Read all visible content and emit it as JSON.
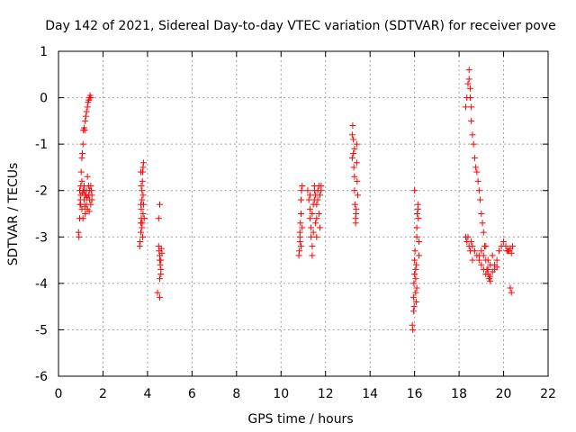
{
  "chart_data": {
    "type": "scatter",
    "title": "Day 142 of 2021, Sidereal Day-to-day VTEC variation (SDTVAR) for receiver pove",
    "xlabel": "GPS time / hours",
    "ylabel": "SDTVAR / TECUs",
    "xlim": [
      0,
      22
    ],
    "ylim": [
      -6,
      1
    ],
    "xticks": [
      0,
      2,
      4,
      6,
      8,
      10,
      12,
      14,
      16,
      18,
      20,
      22
    ],
    "yticks": [
      -6,
      -5,
      -4,
      -3,
      -2,
      -1,
      0,
      1
    ],
    "grid": true,
    "marker": "+",
    "marker_color": "#ff0000",
    "series": [
      {
        "name": "SDTVAR",
        "points": [
          [
            0.9,
            -2.9
          ],
          [
            0.92,
            -3.0
          ],
          [
            0.95,
            -2.6
          ],
          [
            0.97,
            -2.3
          ],
          [
            1.0,
            -1.9
          ],
          [
            1.02,
            -1.6
          ],
          [
            1.05,
            -1.3
          ],
          [
            1.07,
            -1.2
          ],
          [
            1.1,
            -1.0
          ],
          [
            1.12,
            -0.7
          ],
          [
            1.15,
            -0.65
          ],
          [
            1.18,
            -0.7
          ],
          [
            1.2,
            -0.5
          ],
          [
            1.23,
            -0.4
          ],
          [
            1.26,
            -0.3
          ],
          [
            1.3,
            -0.2
          ],
          [
            1.33,
            -0.1
          ],
          [
            1.36,
            -0.05
          ],
          [
            1.4,
            0.0
          ],
          [
            1.42,
            0.05
          ],
          [
            1.45,
            0.0
          ],
          [
            0.95,
            -2.0
          ],
          [
            1.0,
            -2.1
          ],
          [
            1.0,
            -2.3
          ],
          [
            1.05,
            -1.8
          ],
          [
            1.05,
            -2.4
          ],
          [
            1.1,
            -2.0
          ],
          [
            1.1,
            -2.6
          ],
          [
            1.15,
            -2.2
          ],
          [
            1.15,
            -1.9
          ],
          [
            1.2,
            -2.5
          ],
          [
            1.2,
            -2.1
          ],
          [
            1.25,
            -2.0
          ],
          [
            1.25,
            -2.3
          ],
          [
            1.3,
            -1.7
          ],
          [
            1.3,
            -2.4
          ],
          [
            1.35,
            -2.1
          ],
          [
            1.35,
            -1.9
          ],
          [
            1.4,
            -2.2
          ],
          [
            1.4,
            -2.0
          ],
          [
            1.45,
            -2.3
          ],
          [
            1.45,
            -1.9
          ],
          [
            1.5,
            -2.1
          ],
          [
            1.5,
            -2.2
          ],
          [
            1.15,
            -2.0
          ],
          [
            1.25,
            -2.1
          ],
          [
            0.98,
            -2.2
          ],
          [
            1.08,
            -2.05
          ],
          [
            1.18,
            -2.35
          ],
          [
            1.28,
            -2.15
          ],
          [
            1.38,
            -2.45
          ],
          [
            1.48,
            -2.0
          ],
          [
            3.65,
            -3.2
          ],
          [
            3.67,
            -3.1
          ],
          [
            3.7,
            -2.9
          ],
          [
            3.7,
            -2.7
          ],
          [
            3.72,
            -2.6
          ],
          [
            3.72,
            -2.4
          ],
          [
            3.75,
            -2.2
          ],
          [
            3.75,
            -2.0
          ],
          [
            3.77,
            -1.8
          ],
          [
            3.78,
            -1.6
          ],
          [
            3.8,
            -1.5
          ],
          [
            3.82,
            -1.4
          ],
          [
            3.7,
            -1.6
          ],
          [
            3.72,
            -1.9
          ],
          [
            3.75,
            -2.8
          ],
          [
            3.78,
            -3.0
          ],
          [
            3.8,
            -2.5
          ],
          [
            3.82,
            -2.3
          ],
          [
            3.85,
            -2.6
          ],
          [
            3.7,
            -2.3
          ],
          [
            3.76,
            -2.7
          ],
          [
            3.8,
            -2.1
          ],
          [
            4.5,
            -3.2
          ],
          [
            4.52,
            -3.3
          ],
          [
            4.55,
            -3.4
          ],
          [
            4.55,
            -3.5
          ],
          [
            4.57,
            -3.6
          ],
          [
            4.6,
            -3.7
          ],
          [
            4.6,
            -3.8
          ],
          [
            4.62,
            -3.25
          ],
          [
            4.65,
            -3.35
          ],
          [
            4.55,
            -3.9
          ],
          [
            4.45,
            -4.2
          ],
          [
            4.55,
            -4.3
          ],
          [
            4.55,
            -2.3
          ],
          [
            4.5,
            -2.6
          ],
          [
            4.6,
            -3.5
          ],
          [
            10.8,
            -3.4
          ],
          [
            10.82,
            -3.3
          ],
          [
            10.85,
            -3.1
          ],
          [
            10.85,
            -2.9
          ],
          [
            10.87,
            -2.7
          ],
          [
            10.9,
            -2.5
          ],
          [
            10.9,
            -2.2
          ],
          [
            10.92,
            -2.0
          ],
          [
            10.95,
            -1.9
          ],
          [
            10.85,
            -3.0
          ],
          [
            10.9,
            -3.2
          ],
          [
            10.95,
            -2.8
          ],
          [
            11.2,
            -2.0
          ],
          [
            11.25,
            -2.2
          ],
          [
            11.3,
            -2.4
          ],
          [
            11.3,
            -2.6
          ],
          [
            11.35,
            -2.8
          ],
          [
            11.35,
            -3.0
          ],
          [
            11.4,
            -3.2
          ],
          [
            11.4,
            -3.4
          ],
          [
            11.45,
            -2.9
          ],
          [
            11.45,
            -2.3
          ],
          [
            11.5,
            -2.0
          ],
          [
            11.5,
            -1.9
          ],
          [
            11.55,
            -2.1
          ],
          [
            11.55,
            -2.7
          ],
          [
            11.6,
            -3.0
          ],
          [
            11.6,
            -2.6
          ],
          [
            11.65,
            -2.2
          ],
          [
            11.65,
            -2.0
          ],
          [
            11.7,
            -1.9
          ],
          [
            11.7,
            -2.5
          ],
          [
            11.75,
            -2.8
          ],
          [
            11.75,
            -2.1
          ],
          [
            11.8,
            -1.9
          ],
          [
            11.8,
            -2.0
          ],
          [
            11.3,
            -2.1
          ],
          [
            11.4,
            -2.5
          ],
          [
            11.5,
            -2.2
          ],
          [
            11.6,
            -2.3
          ],
          [
            13.2,
            -0.8
          ],
          [
            13.22,
            -0.6
          ],
          [
            13.25,
            -0.9
          ],
          [
            13.25,
            -1.2
          ],
          [
            13.27,
            -1.5
          ],
          [
            13.3,
            -1.7
          ],
          [
            13.3,
            -2.0
          ],
          [
            13.32,
            -2.3
          ],
          [
            13.35,
            -2.6
          ],
          [
            13.35,
            -2.7
          ],
          [
            13.37,
            -2.5
          ],
          [
            13.4,
            -1.4
          ],
          [
            13.4,
            -1.0
          ],
          [
            13.42,
            -1.8
          ],
          [
            13.45,
            -2.1
          ],
          [
            13.2,
            -1.3
          ],
          [
            13.3,
            -1.1
          ],
          [
            13.38,
            -2.4
          ],
          [
            15.9,
            -4.9
          ],
          [
            15.92,
            -5.0
          ],
          [
            15.95,
            -4.6
          ],
          [
            15.95,
            -4.3
          ],
          [
            15.97,
            -4.0
          ],
          [
            16.0,
            -3.8
          ],
          [
            16.0,
            -3.5
          ],
          [
            16.02,
            -3.3
          ],
          [
            16.05,
            -3.7
          ],
          [
            16.05,
            -4.2
          ],
          [
            16.07,
            -4.4
          ],
          [
            16.1,
            -3.0
          ],
          [
            16.1,
            -2.8
          ],
          [
            16.12,
            -2.5
          ],
          [
            16.15,
            -2.4
          ],
          [
            16.15,
            -2.3
          ],
          [
            16.17,
            -2.6
          ],
          [
            16.2,
            -3.1
          ],
          [
            16.2,
            -3.4
          ],
          [
            16.0,
            -2.0
          ],
          [
            16.05,
            -3.9
          ],
          [
            16.1,
            -4.1
          ],
          [
            15.98,
            -4.5
          ],
          [
            16.08,
            -3.6
          ],
          [
            18.3,
            -0.2
          ],
          [
            18.35,
            0.0
          ],
          [
            18.4,
            0.3
          ],
          [
            18.45,
            0.6
          ],
          [
            18.45,
            0.4
          ],
          [
            18.5,
            0.2
          ],
          [
            18.5,
            0.0
          ],
          [
            18.55,
            -0.2
          ],
          [
            18.55,
            -0.5
          ],
          [
            18.6,
            -0.8
          ],
          [
            18.65,
            -1.0
          ],
          [
            18.7,
            -1.3
          ],
          [
            18.75,
            -1.5
          ],
          [
            18.8,
            -1.6
          ],
          [
            18.85,
            -1.8
          ],
          [
            18.9,
            -2.0
          ],
          [
            18.95,
            -2.2
          ],
          [
            19.0,
            -2.5
          ],
          [
            19.05,
            -2.7
          ],
          [
            19.1,
            -2.9
          ],
          [
            19.15,
            -3.2
          ],
          [
            19.2,
            -3.5
          ],
          [
            19.25,
            -3.7
          ],
          [
            19.3,
            -3.8
          ],
          [
            19.35,
            -3.9
          ],
          [
            19.4,
            -3.95
          ],
          [
            18.3,
            -3.0
          ],
          [
            18.35,
            -3.1
          ],
          [
            18.4,
            -3.0
          ],
          [
            18.45,
            -3.2
          ],
          [
            18.5,
            -3.3
          ],
          [
            18.55,
            -3.1
          ],
          [
            18.6,
            -3.2
          ],
          [
            18.7,
            -3.3
          ],
          [
            18.8,
            -3.4
          ],
          [
            18.9,
            -3.5
          ],
          [
            19.0,
            -3.6
          ],
          [
            19.1,
            -3.7
          ],
          [
            19.2,
            -3.8
          ],
          [
            19.3,
            -3.7
          ],
          [
            19.4,
            -3.85
          ],
          [
            19.5,
            -3.75
          ],
          [
            19.6,
            -3.6
          ],
          [
            19.7,
            -3.5
          ],
          [
            19.8,
            -3.3
          ],
          [
            19.9,
            -3.2
          ],
          [
            20.0,
            -3.1
          ],
          [
            20.1,
            -3.2
          ],
          [
            20.2,
            -3.3
          ],
          [
            20.3,
            -3.25
          ],
          [
            20.4,
            -3.2
          ],
          [
            20.35,
            -3.35
          ],
          [
            20.25,
            -3.3
          ],
          [
            20.15,
            -3.3
          ],
          [
            20.3,
            -4.1
          ],
          [
            20.35,
            -4.2
          ],
          [
            19.0,
            -3.3
          ],
          [
            19.1,
            -3.4
          ],
          [
            19.2,
            -3.2
          ],
          [
            19.3,
            -3.5
          ],
          [
            19.4,
            -3.6
          ],
          [
            19.5,
            -3.4
          ],
          [
            19.6,
            -3.7
          ],
          [
            19.7,
            -3.65
          ],
          [
            18.9,
            -3.4
          ],
          [
            18.6,
            -3.5
          ]
        ]
      }
    ]
  }
}
